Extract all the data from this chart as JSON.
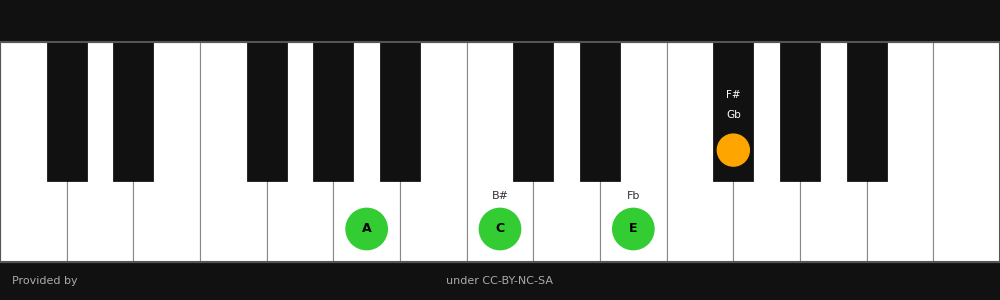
{
  "fig_width": 10.0,
  "fig_height": 3.0,
  "dpi": 100,
  "footer_color": "#111111",
  "footer_text_left": "Provided by",
  "footer_text_center": "under CC-BY-NC-SA",
  "footer_text_color": "#aaaaaa",
  "white_key_color": "#ffffff",
  "black_key_color": "#111111",
  "key_border_color": "#888888",
  "num_white_keys": 15,
  "white_key_highlights": {
    "5": {
      "label": "A",
      "color": "#33cc33"
    },
    "7": {
      "label": "C",
      "color": "#33cc33"
    },
    "9": {
      "label": "E",
      "color": "#33cc33"
    }
  },
  "black_key_after_white": [
    0,
    1,
    3,
    4,
    5,
    7,
    8,
    10,
    11,
    12
  ],
  "black_key_highlights": {
    "7": {
      "labels": [
        "F#",
        "Gb"
      ],
      "color": "#FFA500"
    }
  },
  "white_enharmonic_labels": {
    "7": "B#",
    "9": "Fb"
  }
}
